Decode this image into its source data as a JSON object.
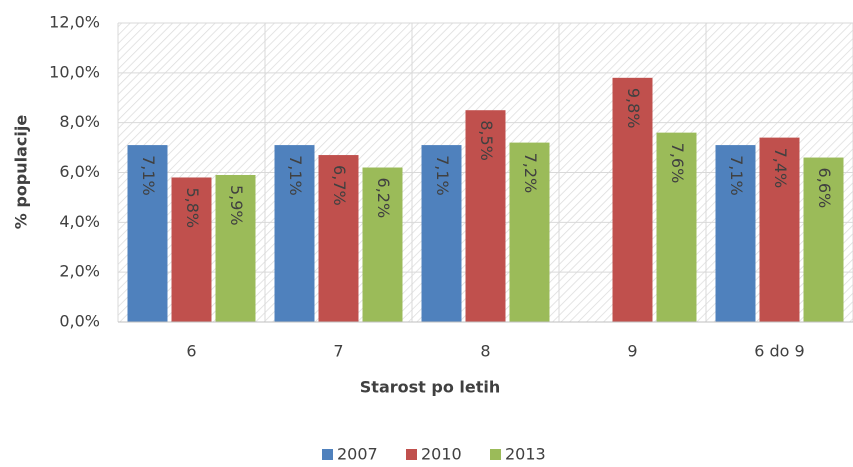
{
  "chart_data": {
    "type": "bar",
    "x_label": "Starost po letih",
    "y_label": "% populacije",
    "categories": [
      "6",
      "7",
      "8",
      "9",
      "6 do 9"
    ],
    "series": [
      {
        "name": "2007",
        "color": "#4f81bd",
        "values": [
          7.1,
          7.1,
          7.1,
          null,
          7.1
        ],
        "value_labels": [
          "7,1%",
          "7,1%",
          "7,1%",
          null,
          "7,1%"
        ]
      },
      {
        "name": "2010",
        "color": "#c0504d",
        "values": [
          5.8,
          6.7,
          8.5,
          9.8,
          7.4
        ],
        "value_labels": [
          "5,8%",
          "6,7%",
          "8,5%",
          "9,8%",
          "7,4%"
        ]
      },
      {
        "name": "2013",
        "color": "#9bbb59",
        "values": [
          5.9,
          6.2,
          7.2,
          7.6,
          6.6
        ],
        "value_labels": [
          "5,9%",
          "6,2%",
          "7,2%",
          "7,6%",
          "6,6%"
        ]
      }
    ],
    "ylim": [
      0,
      12
    ],
    "yticks": [
      {
        "value": 0,
        "label": "0,0%"
      },
      {
        "value": 2,
        "label": "2,0%"
      },
      {
        "value": 4,
        "label": "4,0%"
      },
      {
        "value": 6,
        "label": "6,0%"
      },
      {
        "value": 8,
        "label": "8,0%"
      },
      {
        "value": 10,
        "label": "10,0%"
      },
      {
        "value": 12,
        "label": "12,0%"
      }
    ],
    "grid": true,
    "legend": "bottom"
  }
}
